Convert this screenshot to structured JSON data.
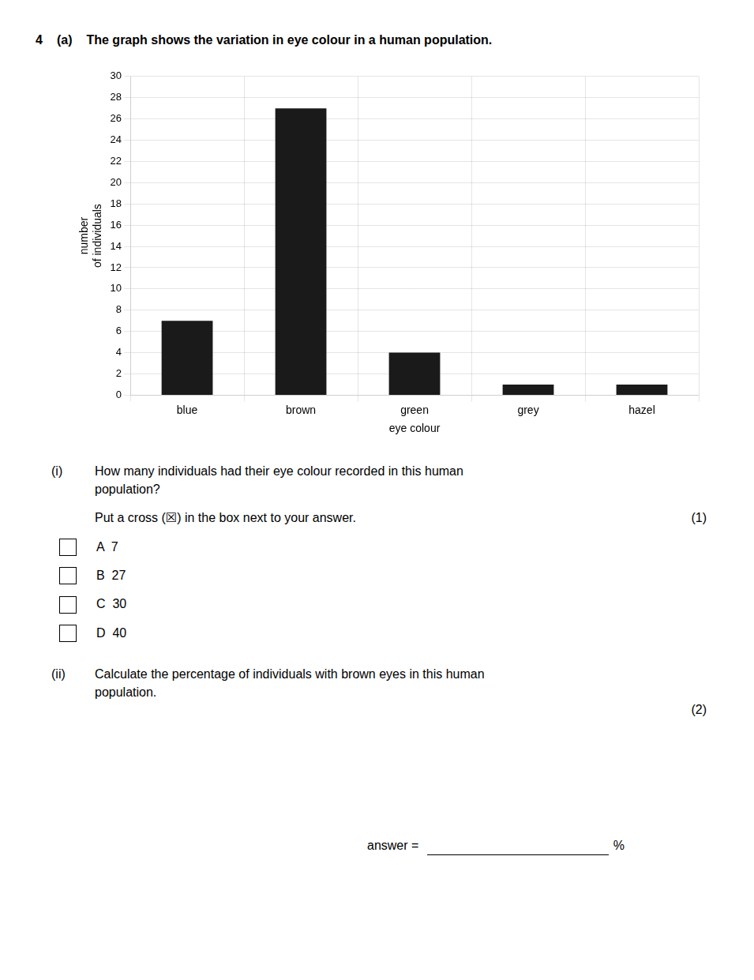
{
  "chart_data": {
    "type": "bar",
    "categories": [
      "blue",
      "brown",
      "green",
      "grey",
      "hazel"
    ],
    "values": [
      7,
      27,
      4,
      1,
      1
    ],
    "color": "#1a1a1a",
    "xlabel": "eye colour",
    "ylabel": "number\nof individuals",
    "ylim": [
      0,
      30
    ],
    "yticks": [
      0,
      2,
      4,
      6,
      8,
      10,
      12,
      14,
      16,
      18,
      20,
      22,
      24,
      26,
      28,
      30
    ],
    "grid": true,
    "annotations": [
      "4",
      "(a)",
      "The graph shows the variation in eye colour in a human population.",
      "(i)",
      "How many individuals had their eye colour recorded in this human\npopulation?",
      "Put a cross (☒) in the box next to your answer.",
      "(1)",
      "A  7",
      "B  27",
      "C  30",
      "D  40",
      "(ii)",
      "Calculate the percentage of individuals with brown eyes in this human\npopulation.",
      "(2)",
      "answer = ",
      "%"
    ]
  }
}
